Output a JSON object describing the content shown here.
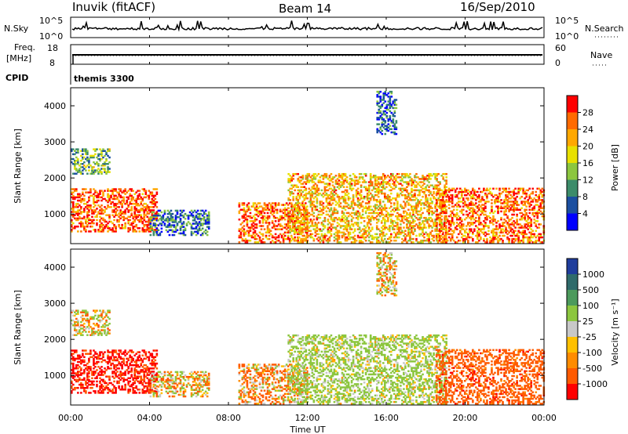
{
  "header": {
    "station": "Inuvik (fitACF)",
    "beam": "Beam 14",
    "date": "16/Sep/2010"
  },
  "strips": {
    "nsky_label": "N.Sky",
    "nsky_ticks": [
      "10^5",
      "10^0"
    ],
    "nsearch_label": "N.Search",
    "nsearch_ticks": [
      "10^5",
      "10^0"
    ],
    "freq_label_1": "Freq.",
    "freq_label_2": "[MHz]",
    "freq_ticks": [
      "18",
      "8"
    ],
    "nave_label": "Nave",
    "nave_ticks": [
      "60",
      "0"
    ],
    "cpid_label": "CPID",
    "cpid_value": "themis 3300"
  },
  "panels": {
    "ylabel": "Slant Range [km]",
    "xlabel": "Time UT",
    "yticks": [
      "4000",
      "3000",
      "2000",
      "1000"
    ],
    "xticks": [
      "00:00",
      "04:00",
      "08:00",
      "12:00",
      "16:00",
      "20:00",
      "00:00"
    ]
  },
  "power_colorbar": {
    "label": "Power [dB]",
    "ticks": [
      "28",
      "24",
      "20",
      "16",
      "12",
      "8",
      "4"
    ],
    "colors": [
      "#ff0000",
      "#ff6a00",
      "#ffa800",
      "#e8e000",
      "#8cc63f",
      "#3c8c6a",
      "#1b4fa0",
      "#0000ff"
    ]
  },
  "velocity_colorbar": {
    "label": "Velocity [m s⁻¹]",
    "ticks": [
      "1000",
      "500",
      "100",
      "25",
      "-25",
      "-100",
      "-500",
      "-1000"
    ],
    "colors": [
      "#1f3d9c",
      "#2f6b6b",
      "#4c9a5c",
      "#8cc63f",
      "#c8c8c8",
      "#ffc000",
      "#ff8c00",
      "#ff5a00",
      "#ff0000"
    ]
  },
  "chart_data": {
    "type": "heatmap",
    "title": "",
    "xlabel": "Time UT",
    "ylabel": "Slant Range [km]",
    "x_range": [
      "00:00",
      "00:00"
    ],
    "x_ticks": [
      "00:00",
      "04:00",
      "08:00",
      "12:00",
      "16:00",
      "20:00",
      "00:00"
    ],
    "ylim": [
      180,
      4500
    ],
    "y_ticks": [
      1000,
      2000,
      3000,
      4000
    ],
    "panels": [
      {
        "name": "Power",
        "unit": "dB",
        "range": [
          0,
          30
        ],
        "scale_ticks": [
          4,
          8,
          12,
          16,
          20,
          24,
          28
        ]
      },
      {
        "name": "Velocity",
        "unit": "m s-1",
        "range": [
          -1000,
          1000
        ],
        "scale_ticks": [
          -1000,
          -500,
          -100,
          -25,
          25,
          100,
          500,
          1000
        ]
      }
    ],
    "freq_range_mhz": [
      8,
      18
    ],
    "nave_range": [
      0,
      60
    ],
    "nsky_range": [
      "10^0",
      "10^5"
    ],
    "echo_regions": [
      {
        "t_start_h": 0.0,
        "t_end_h": 4.4,
        "r_min_km": 500,
        "r_max_km": 1700,
        "power_db": 25,
        "velocity": -600
      },
      {
        "t_start_h": 0.0,
        "t_end_h": 2.0,
        "r_min_km": 2100,
        "r_max_km": 2800,
        "power_db": 12,
        "velocity": 25
      },
      {
        "t_start_h": 4.0,
        "t_end_h": 7.0,
        "r_min_km": 400,
        "r_max_km": 1100,
        "power_db": 8,
        "velocity": 0
      },
      {
        "t_start_h": 8.5,
        "t_end_h": 12.0,
        "r_min_km": 200,
        "r_max_km": 1300,
        "power_db": 24,
        "velocity": -100
      },
      {
        "t_start_h": 11.0,
        "t_end_h": 19.0,
        "r_min_km": 200,
        "r_max_km": 2100,
        "power_db": 20,
        "velocity": 200
      },
      {
        "t_start_h": 18.5,
        "t_end_h": 24.0,
        "r_min_km": 200,
        "r_max_km": 1700,
        "power_db": 24,
        "velocity": -300
      },
      {
        "t_start_h": 15.5,
        "t_end_h": 16.5,
        "r_min_km": 3200,
        "r_max_km": 4400,
        "power_db": 6,
        "velocity": 25
      }
    ]
  }
}
